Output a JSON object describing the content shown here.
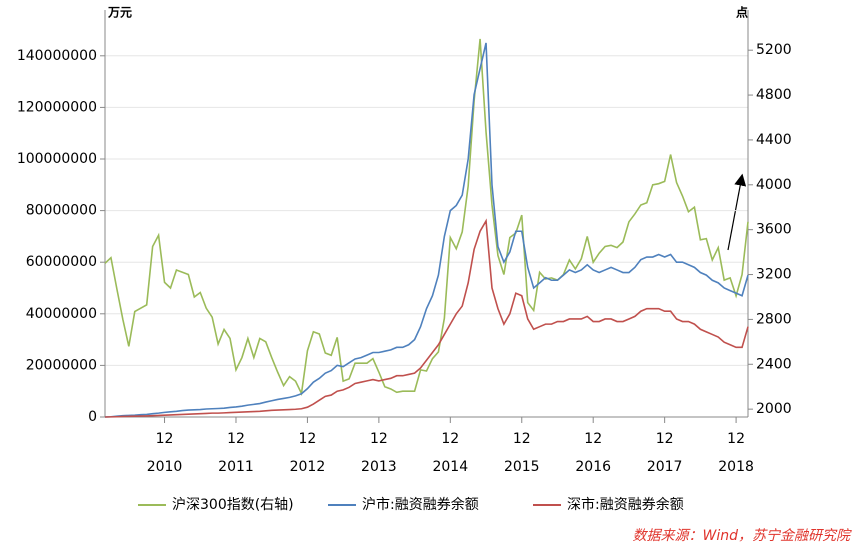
{
  "chart_data": {
    "type": "line",
    "y_unit": "万元",
    "y2_unit": "点",
    "source": "数据来源：Wind，苏宁金融研究院",
    "xlim": [
      "2010-02",
      "2019-02"
    ],
    "xticks": [
      {
        "value": "2010-12",
        "label": "12"
      },
      {
        "value": "2011-12",
        "label": "12"
      },
      {
        "value": "2012-12",
        "label": "12"
      },
      {
        "value": "2013-12",
        "label": "12"
      },
      {
        "value": "2014-12",
        "label": "12"
      },
      {
        "value": "2015-12",
        "label": "12"
      },
      {
        "value": "2016-12",
        "label": "12"
      },
      {
        "value": "2017-12",
        "label": "12"
      },
      {
        "value": "2018-12",
        "label": "12"
      }
    ],
    "x_tick_years": [
      "2010",
      "2011",
      "2012",
      "2013",
      "2014",
      "2015",
      "2016",
      "2017",
      "2018"
    ],
    "ylim": [
      0,
      150000000
    ],
    "yticks": [
      0,
      20000000,
      40000000,
      60000000,
      80000000,
      100000000,
      120000000,
      140000000
    ],
    "y2lim": [
      1930,
      5380
    ],
    "y2ticks": [
      2000,
      2400,
      2800,
      3200,
      3600,
      4000,
      4400,
      4800,
      5200
    ],
    "grid": true,
    "legend": "bottom",
    "x": [
      "2010-02",
      "2010-03",
      "2010-04",
      "2010-05",
      "2010-06",
      "2010-07",
      "2010-08",
      "2010-09",
      "2010-10",
      "2010-11",
      "2010-12",
      "2011-01",
      "2011-02",
      "2011-03",
      "2011-04",
      "2011-05",
      "2011-06",
      "2011-07",
      "2011-08",
      "2011-09",
      "2011-10",
      "2011-11",
      "2011-12",
      "2012-01",
      "2012-02",
      "2012-03",
      "2012-04",
      "2012-05",
      "2012-06",
      "2012-07",
      "2012-08",
      "2012-09",
      "2012-10",
      "2012-11",
      "2012-12",
      "2013-01",
      "2013-02",
      "2013-03",
      "2013-04",
      "2013-05",
      "2013-06",
      "2013-07",
      "2013-08",
      "2013-09",
      "2013-10",
      "2013-11",
      "2013-12",
      "2014-01",
      "2014-02",
      "2014-03",
      "2014-04",
      "2014-05",
      "2014-06",
      "2014-07",
      "2014-08",
      "2014-09",
      "2014-10",
      "2014-11",
      "2014-12",
      "2015-01",
      "2015-02",
      "2015-03",
      "2015-04",
      "2015-05",
      "2015-06",
      "2015-07",
      "2015-08",
      "2015-09",
      "2015-10",
      "2015-11",
      "2015-12",
      "2016-01",
      "2016-02",
      "2016-03",
      "2016-04",
      "2016-05",
      "2016-06",
      "2016-07",
      "2016-08",
      "2016-09",
      "2016-10",
      "2016-11",
      "2016-12",
      "2017-01",
      "2017-02",
      "2017-03",
      "2017-04",
      "2017-05",
      "2017-06",
      "2017-07",
      "2017-08",
      "2017-09",
      "2017-10",
      "2017-11",
      "2017-12",
      "2018-01",
      "2018-02",
      "2018-03",
      "2018-04",
      "2018-05",
      "2018-06",
      "2018-07",
      "2018-08",
      "2018-09",
      "2018-10",
      "2018-11",
      "2018-12",
      "2019-01",
      "2019-02"
    ],
    "series": [
      {
        "name": "沪深300指数(右轴)",
        "color": "#9bbb59",
        "axis": "y2",
        "values": [
          3300,
          3350,
          3070,
          2800,
          2560,
          2870,
          2900,
          2930,
          3450,
          3550,
          3130,
          3080,
          3240,
          3220,
          3200,
          3000,
          3040,
          2900,
          2820,
          2580,
          2710,
          2630,
          2350,
          2460,
          2630,
          2460,
          2630,
          2600,
          2460,
          2330,
          2210,
          2290,
          2250,
          2140,
          2520,
          2690,
          2670,
          2500,
          2480,
          2640,
          2250,
          2270,
          2410,
          2410,
          2410,
          2450,
          2330,
          2200,
          2180,
          2150,
          2160,
          2160,
          2160,
          2350,
          2340,
          2450,
          2510,
          2810,
          3530,
          3430,
          3580,
          3990,
          4750,
          5300,
          4470,
          3820,
          3370,
          3200,
          3530,
          3570,
          3730,
          2950,
          2880,
          3220,
          3160,
          3170,
          3150,
          3200,
          3330,
          3250,
          3340,
          3540,
          3310,
          3390,
          3450,
          3460,
          3440,
          3490,
          3670,
          3740,
          3820,
          3840,
          4000,
          4010,
          4030,
          4270,
          4020,
          3900,
          3760,
          3800,
          3510,
          3520,
          3330,
          3440,
          3150,
          3170,
          3010,
          3200,
          3670
        ]
      },
      {
        "name": "沪市:融资融券余额",
        "color": "#4f81bd",
        "values": [
          0,
          100000,
          300000,
          500000,
          600000,
          700000,
          900000,
          1000000,
          1300000,
          1500000,
          1800000,
          2000000,
          2200000,
          2500000,
          2700000,
          2800000,
          2900000,
          3100000,
          3200000,
          3300000,
          3400000,
          3700000,
          3900000,
          4200000,
          4600000,
          4900000,
          5200000,
          5800000,
          6300000,
          6800000,
          7200000,
          7600000,
          8200000,
          9000000,
          11000000,
          13500000,
          15000000,
          17000000,
          18000000,
          20000000,
          19500000,
          21000000,
          22500000,
          23000000,
          24000000,
          25000000,
          25000000,
          25500000,
          26000000,
          27000000,
          27000000,
          28000000,
          30000000,
          35000000,
          42000000,
          47000000,
          55000000,
          70000000,
          80000000,
          82000000,
          86000000,
          100000000,
          125000000,
          135000000,
          145000000,
          90000000,
          66000000,
          60000000,
          64000000,
          72000000,
          72000000,
          58000000,
          50000000,
          52000000,
          54000000,
          53000000,
          53000000,
          55000000,
          57000000,
          56000000,
          57000000,
          59000000,
          57000000,
          56000000,
          57000000,
          58000000,
          57000000,
          56000000,
          56000000,
          58000000,
          61000000,
          62000000,
          62000000,
          63000000,
          62000000,
          63000000,
          60000000,
          60000000,
          59000000,
          58000000,
          56000000,
          55000000,
          53000000,
          52000000,
          50000000,
          49000000,
          48000000,
          47000000,
          55000000
        ]
      },
      {
        "name": "深市:融资融券余额",
        "color": "#c0504d",
        "values": [
          0,
          50000,
          100000,
          200000,
          250000,
          300000,
          350000,
          400000,
          500000,
          600000,
          700000,
          800000,
          900000,
          1000000,
          1100000,
          1200000,
          1300000,
          1400000,
          1500000,
          1500000,
          1600000,
          1700000,
          1800000,
          1900000,
          2000000,
          2100000,
          2200000,
          2400000,
          2600000,
          2700000,
          2800000,
          2900000,
          3000000,
          3200000,
          3800000,
          5000000,
          6500000,
          8000000,
          8500000,
          10000000,
          10500000,
          11500000,
          13000000,
          13500000,
          14000000,
          14500000,
          14000000,
          14500000,
          15000000,
          16000000,
          16000000,
          16500000,
          17000000,
          19000000,
          22000000,
          25000000,
          28000000,
          32000000,
          36000000,
          40000000,
          43000000,
          52000000,
          65000000,
          72000000,
          76000000,
          50000000,
          42000000,
          36000000,
          40000000,
          48000000,
          47000000,
          38000000,
          34000000,
          35000000,
          36000000,
          36000000,
          37000000,
          37000000,
          38000000,
          38000000,
          38000000,
          39000000,
          37000000,
          37000000,
          38000000,
          38000000,
          37000000,
          37000000,
          38000000,
          39000000,
          41000000,
          42000000,
          42000000,
          42000000,
          41000000,
          41000000,
          38000000,
          37000000,
          37000000,
          36000000,
          34000000,
          33000000,
          32000000,
          31000000,
          29000000,
          28000000,
          27000000,
          27000000,
          35000000
        ]
      }
    ]
  }
}
